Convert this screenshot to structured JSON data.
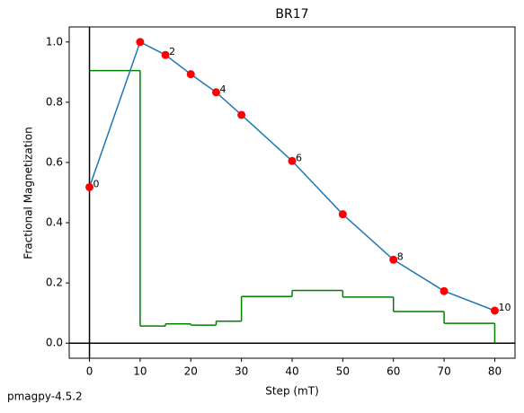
{
  "chart_data": {
    "type": "line",
    "title": "BR17",
    "xlabel": "Step (mT)",
    "ylabel": "Fractional Magnetization",
    "footer": "pmagpy-4.5.2",
    "x": [
      0,
      10,
      15,
      20,
      25,
      30,
      40,
      50,
      60,
      70,
      80
    ],
    "series": [
      {
        "color": "#1f77b4",
        "marker_color": "#ff0000",
        "values": [
          0.518,
          1.0,
          0.957,
          0.893,
          0.833,
          0.758,
          0.605,
          0.428,
          0.277,
          0.173,
          0.108
        ]
      }
    ],
    "point_labels": [
      "0",
      null,
      "2",
      null,
      "4",
      null,
      "6",
      null,
      "8",
      null,
      "10"
    ],
    "steps": {
      "color": "#008000",
      "bins": [
        0,
        10,
        15,
        20,
        25,
        30,
        40,
        50,
        60,
        70,
        80
      ],
      "counts": [
        0.905,
        0.057,
        0.064,
        0.06,
        0.073,
        0.155,
        0.175,
        0.153,
        0.105,
        0.066
      ]
    },
    "xlim": [
      -4,
      84
    ],
    "ylim": [
      -0.05,
      1.05
    ],
    "xticks": [
      0,
      10,
      20,
      30,
      40,
      50,
      60,
      70,
      80
    ],
    "yticks": [
      {
        "value": 0,
        "label": "0.0"
      },
      {
        "value": 0.2,
        "label": "0.2"
      },
      {
        "value": 0.4,
        "label": "0.4"
      },
      {
        "value": 0.6,
        "label": "0.6"
      },
      {
        "value": 0.8,
        "label": "0.8"
      },
      {
        "value": 1,
        "label": "1.0"
      }
    ]
  }
}
